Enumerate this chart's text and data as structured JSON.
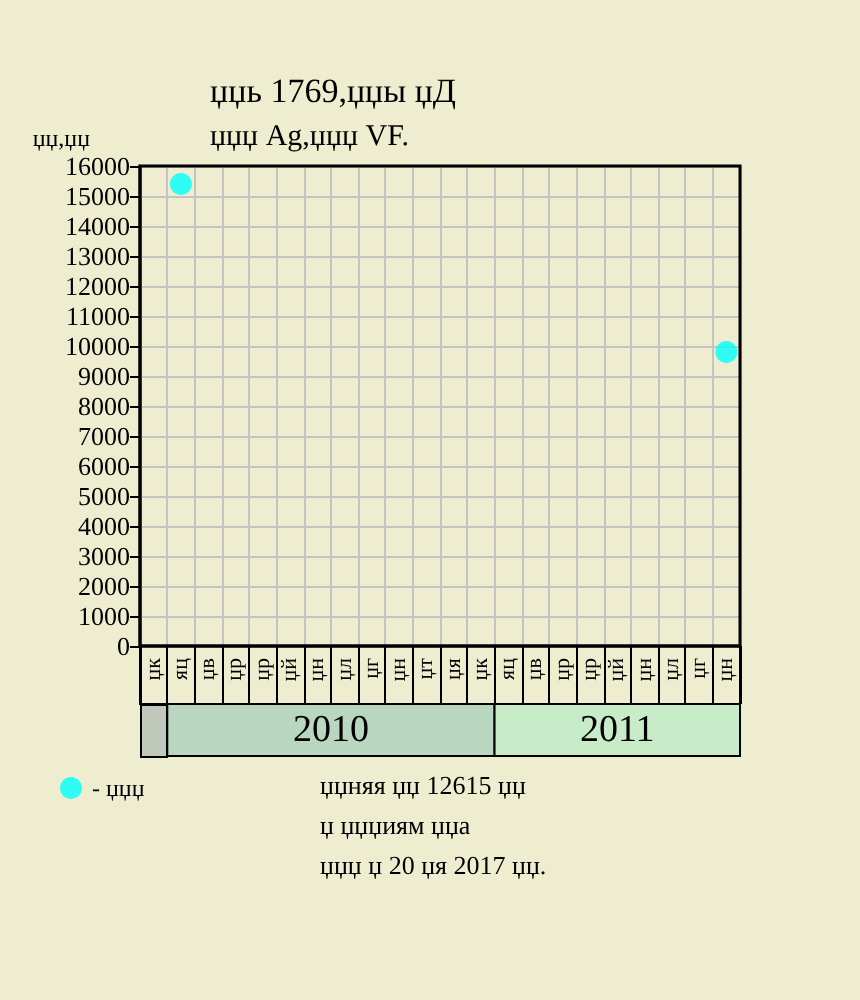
{
  "chart_data": {
    "type": "scatter",
    "title": "џџь 1769,џџы џД",
    "subtitle": "џџџ Ag,џџџ VF.",
    "ylabel": "џџ,џџ",
    "categories": [
      "џк",
      "яц",
      "џв",
      "џр",
      "џр",
      "џй",
      "џн",
      "џл",
      "џг",
      "џн",
      "џт",
      "џя",
      "џк",
      "яц",
      "џв",
      "џр",
      "џр",
      "џй",
      "џн",
      "џл",
      "џг",
      "џн"
    ],
    "series": [
      {
        "name": "- џџџ",
        "color": "#00ffff",
        "values": [
          null,
          15400,
          null,
          null,
          null,
          null,
          null,
          null,
          null,
          null,
          null,
          null,
          null,
          null,
          null,
          null,
          null,
          null,
          null,
          null,
          null,
          9800
        ]
      }
    ],
    "ylim": [
      0,
      16000
    ],
    "yticks": [
      0,
      1000,
      2000,
      3000,
      4000,
      5000,
      6000,
      7000,
      8000,
      9000,
      10000,
      11000,
      12000,
      13000,
      14000,
      15000,
      16000
    ],
    "grid": true,
    "legend": "bottom left",
    "marker": "circle",
    "annotations": [
      "2010",
      "2011",
      "џџняя џџ 12615 џџ",
      "џ џџџиям џџа",
      "џџџ џ 20 џя 2017 џџ."
    ]
  }
}
